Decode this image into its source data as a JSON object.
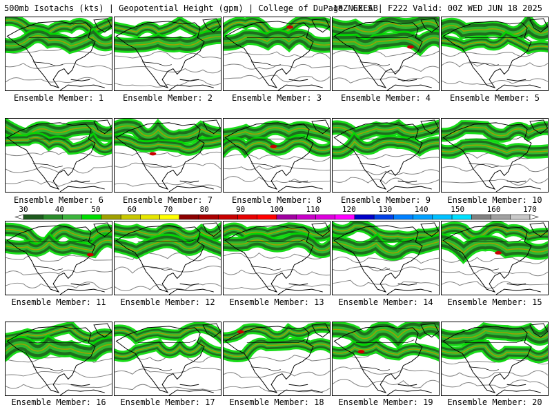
{
  "header": {
    "left": "500mb Isotachs (kts) | Geopotential Height (gpm) | College of DuPage NEXLAB",
    "right": "18Z GEFS | F222 Valid: 00Z WED JUN 18 2025"
  },
  "caption_prefix": "Ensemble Member: ",
  "members": [
    1,
    2,
    3,
    4,
    5,
    6,
    7,
    8,
    9,
    10,
    11,
    12,
    13,
    14,
    15,
    16,
    17,
    18,
    19,
    20
  ],
  "member_labels": [
    "Ensemble Member: 1",
    "Ensemble Member: 2",
    "Ensemble Member: 3",
    "Ensemble Member: 4",
    "Ensemble Member: 5",
    "Ensemble Member: 6",
    "Ensemble Member: 7",
    "Ensemble Member: 8",
    "Ensemble Member: 9",
    "Ensemble Member: 10",
    "Ensemble Member: 11",
    "Ensemble Member: 12",
    "Ensemble Member: 13",
    "Ensemble Member: 14",
    "Ensemble Member: 15",
    "Ensemble Member: 16",
    "Ensemble Member: 17",
    "Ensemble Member: 18",
    "Ensemble Member: 19",
    "Ensemble Member: 20"
  ],
  "colorbar": {
    "ticks_even": [
      "30",
      "50",
      "70",
      "90",
      "110",
      "130",
      "150",
      "170"
    ],
    "ticks_odd": [
      "40",
      "60",
      "80",
      "100",
      "120",
      "140",
      "160"
    ],
    "colors": [
      "#1e5a1e",
      "#2a8c2a",
      "#3cb43c",
      "#00dc00",
      "#a0a000",
      "#c8c800",
      "#e6e600",
      "#ffff00",
      "#8b0000",
      "#aa0000",
      "#c80000",
      "#e60000",
      "#ff0000",
      "#a000a0",
      "#c800c8",
      "#dc00dc",
      "#ff00ff",
      "#0000c8",
      "#0040e6",
      "#0080ff",
      "#00a0ff",
      "#00c0ff",
      "#00e0ff",
      "#808080",
      "#a0a0a0",
      "#c8c8c8"
    ]
  },
  "colors": {
    "jet_dark": "#1e6e1e",
    "jet_mid": "#2eb82e",
    "jet_light": "#00d800",
    "jet_core": "#a0a000",
    "jet_max": "#c80000",
    "height_contour": "#808080",
    "coastline": "#000000"
  }
}
